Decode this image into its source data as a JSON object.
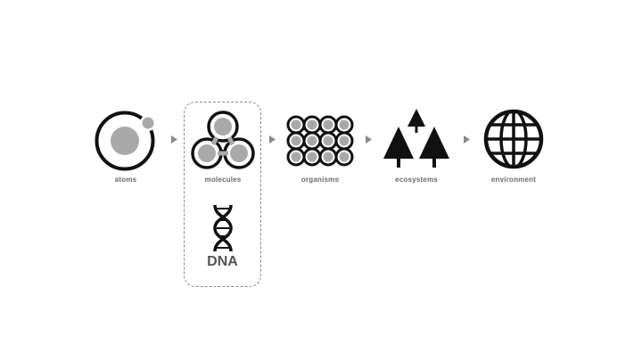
{
  "stages": [
    {
      "label": "atoms",
      "icon": "atom-icon"
    },
    {
      "label": "molecules",
      "icon": "molecule-icon"
    },
    {
      "label": "organisms",
      "icon": "cell-grid-icon"
    },
    {
      "label": "ecosystems",
      "icon": "trees-icon"
    },
    {
      "label": "environment",
      "icon": "globe-icon"
    }
  ],
  "group": {
    "icon": "dna-helix-icon",
    "label": "DNA"
  },
  "colors": {
    "stroke": "#111111",
    "fill_gray": "#a9a9a9",
    "text": "#6a6a6a",
    "arrow": "#888888"
  }
}
